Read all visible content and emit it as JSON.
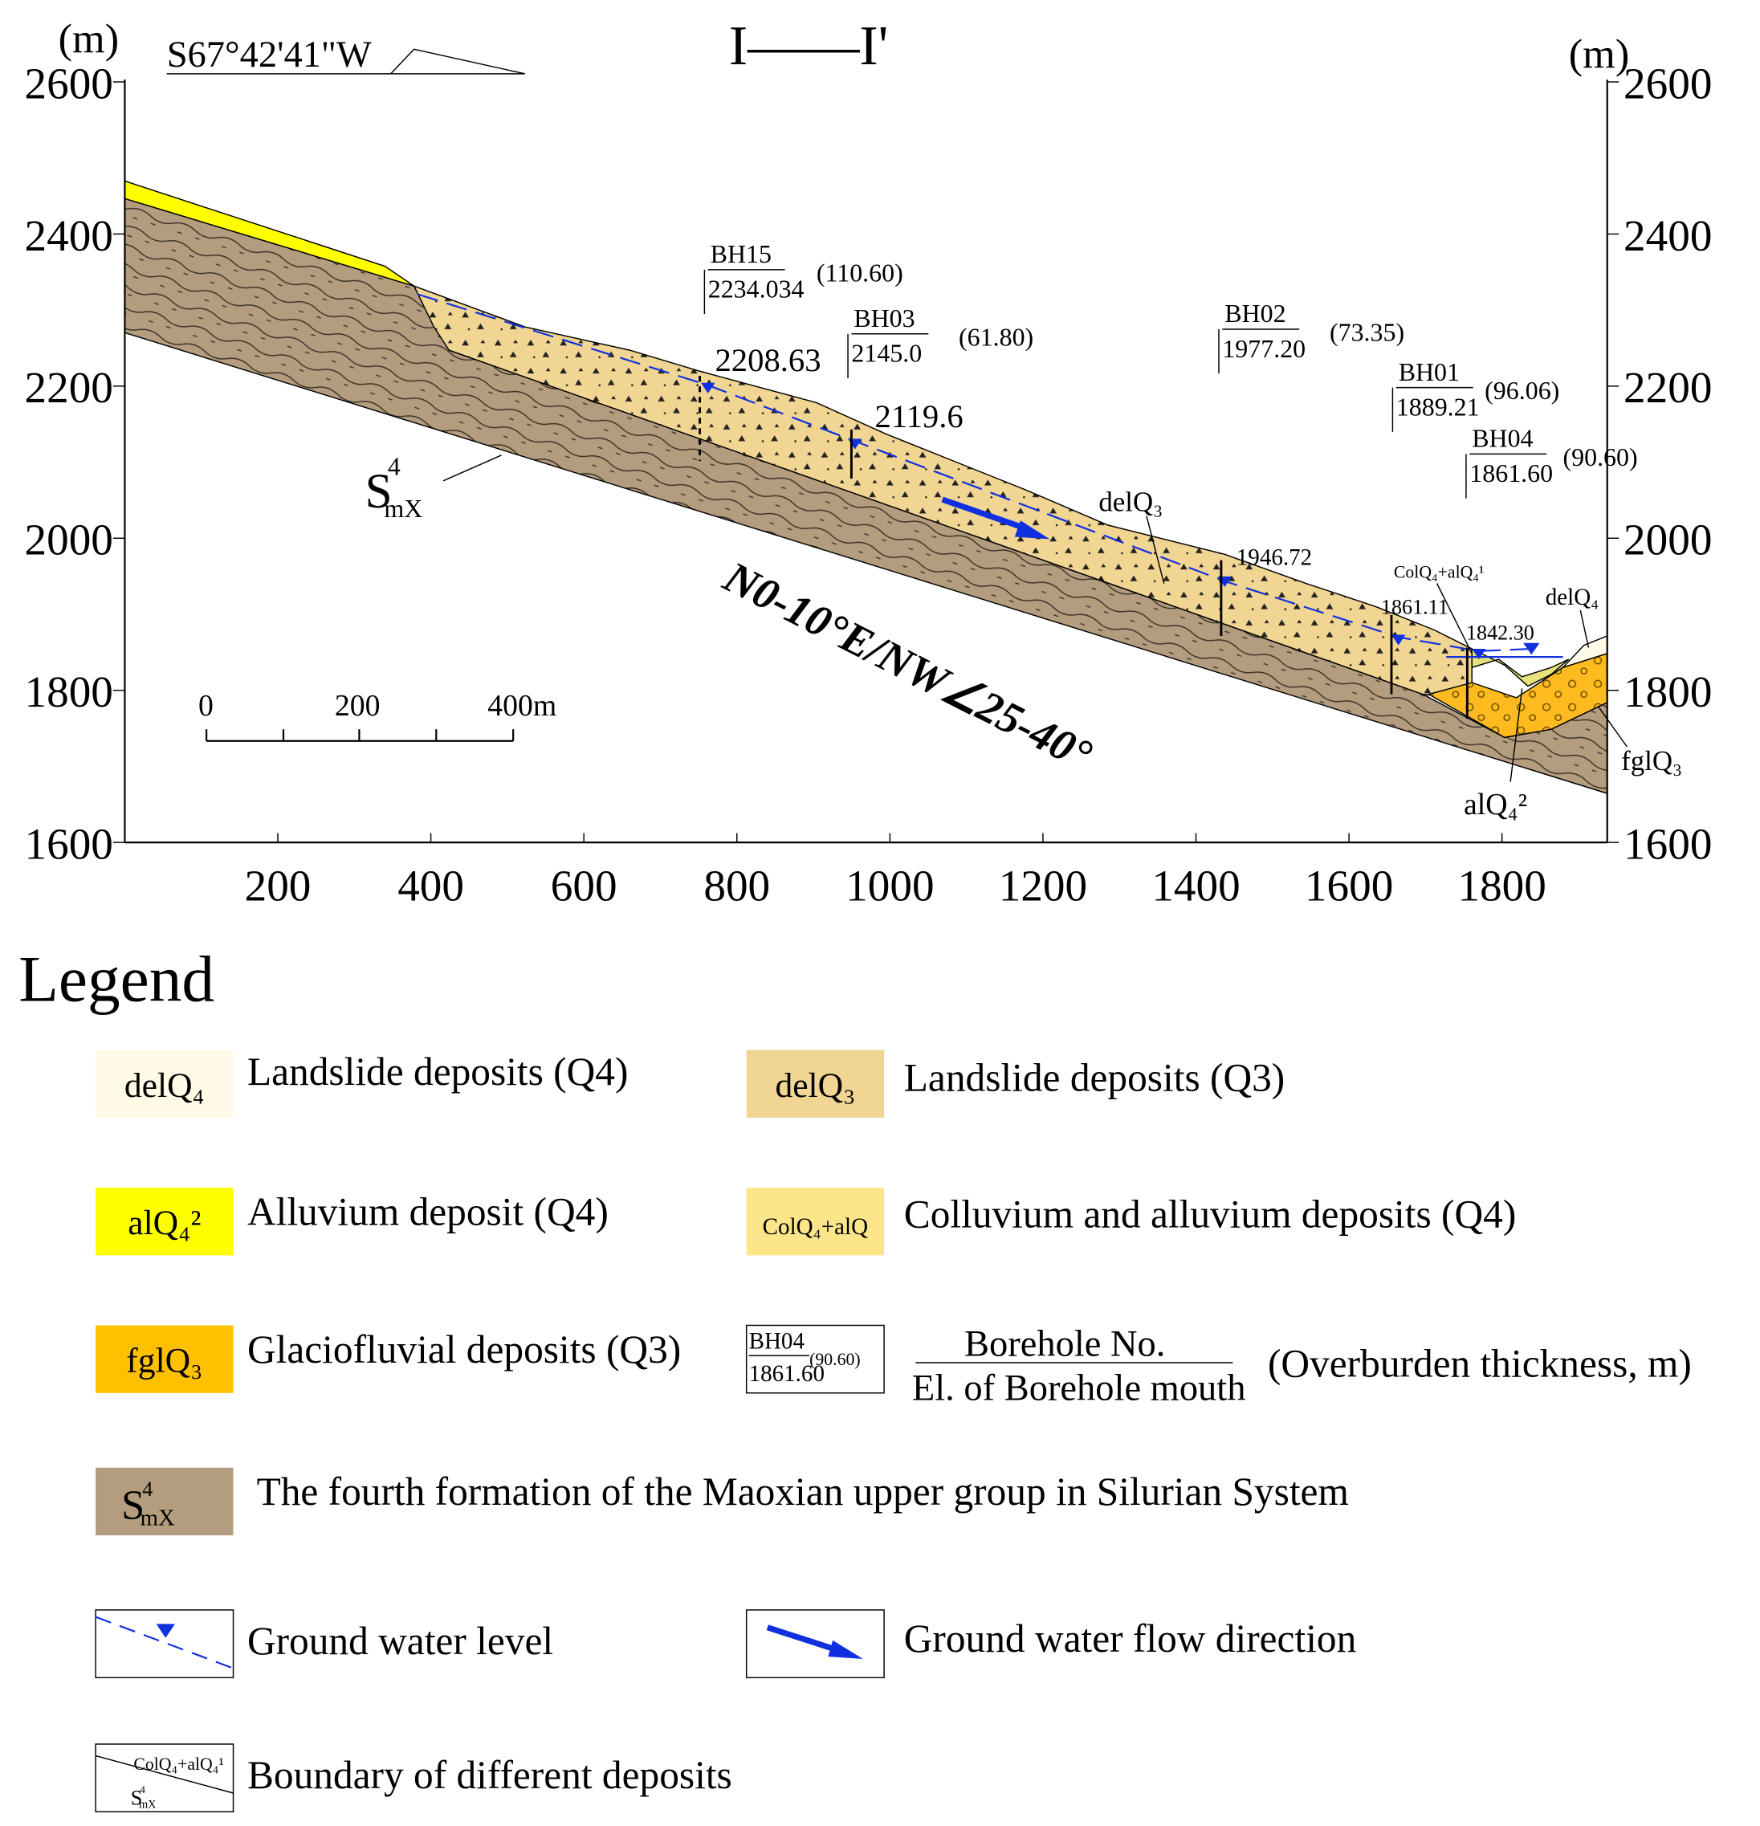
{
  "title": "I——I'",
  "direction": "S67°42'41\"W",
  "axes": {
    "left_unit": "(m)",
    "right_unit": "(m)",
    "elevation_ticks": [
      1600,
      1800,
      2000,
      2200,
      2400,
      2600
    ],
    "distance_ticks": [
      200,
      400,
      600,
      800,
      1000,
      1200,
      1400,
      1600,
      1800
    ]
  },
  "scale_bar": [
    "0",
    "200",
    "400m"
  ],
  "boreholes": [
    {
      "name": "BH15",
      "elevation": "2234.034",
      "thickness": "(110.60)"
    },
    {
      "name": "BH03",
      "elevation": "2145.0",
      "thickness": "(61.80)"
    },
    {
      "name": "BH02",
      "elevation": "1977.20",
      "thickness": "(73.35)"
    },
    {
      "name": "BH01",
      "elevation": "1889.21",
      "thickness": "(96.06)"
    },
    {
      "name": "BH04",
      "elevation": "1861.60",
      "thickness": "(90.60)"
    }
  ],
  "water_levels": [
    "2208.63",
    "2119.6",
    "1946.72",
    "1861.11",
    "1842.30"
  ],
  "section_labels": {
    "delQ3": "delQ₃",
    "colq4": "ColQ₄+alQ₄¹",
    "delQ4": "delQ₄",
    "fglQ3": "fglQ₃",
    "alQ4": "alQ₄²",
    "bedrock": {
      "main": "S",
      "sup": "4",
      "sub": "mX"
    }
  },
  "attitude": "N0-10°E/NW∠25-40°",
  "legend": {
    "title": "Legend",
    "items": [
      {
        "symbol": "delQ₄",
        "label": "Landslide deposits (Q4)"
      },
      {
        "symbol": "delQ₃",
        "label": "Landslide deposits (Q3)"
      },
      {
        "symbol": "alQ₄²",
        "label": "Alluvium deposit (Q4)"
      },
      {
        "symbol": "ColQ₄+alQ",
        "label": "Colluvium and alluvium  deposits (Q4)"
      },
      {
        "symbol": "fglQ₃",
        "label": "Glaciofluvial deposits (Q3)"
      },
      {
        "symbol": {
          "name": "BH04",
          "elevation": "1861.60",
          "thickness": "(90.60)"
        },
        "caption_top": "Borehole No.",
        "caption_bottom": "El. of Borehole mouth",
        "label": "(Overburden thickness, m)"
      },
      {
        "symbol": {
          "main": "S",
          "sup": "4",
          "sub": "mX"
        },
        "label": "The fourth formation of the Maoxian upper group in Silurian System"
      },
      {
        "label": "Ground water level"
      },
      {
        "label": "Ground water flow direction"
      },
      {
        "symbol": {
          "top": "ColQ₄+alQ₄¹",
          "bottom": {
            "main": "S",
            "sup": "4",
            "sub": "mX"
          }
        },
        "label": "Boundary of different deposits"
      }
    ]
  }
}
